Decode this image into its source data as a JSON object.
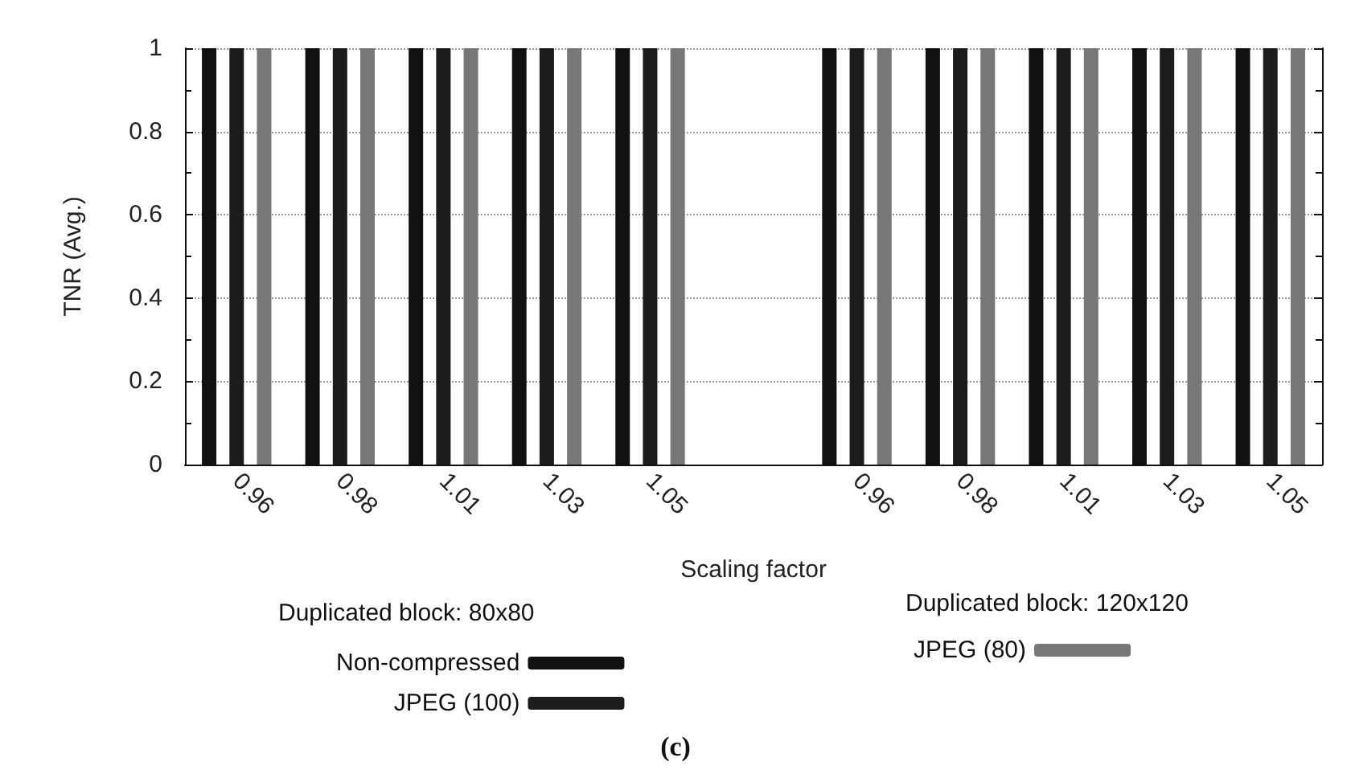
{
  "chart_data": {
    "type": "bar",
    "xlabel": "Scaling factor",
    "ylabel": "TNR (Avg.)",
    "categories": [
      "0.96",
      "0.98",
      "1.01",
      "1.03",
      "1.05",
      null,
      "0.96",
      "0.98",
      "1.01",
      "1.03",
      "1.05"
    ],
    "series": [
      {
        "name": "Non-compressed",
        "color": "#111111",
        "values": [
          1,
          1,
          1,
          1,
          1,
          null,
          1,
          1,
          1,
          1,
          1
        ]
      },
      {
        "name": "JPEG (100)",
        "color": "#1c1c1c",
        "values": [
          1,
          1,
          1,
          1,
          1,
          null,
          1,
          1,
          1,
          1,
          1
        ]
      },
      {
        "name": "JPEG (80)",
        "color": "#777777",
        "values": [
          1,
          1,
          1,
          1,
          1,
          null,
          1,
          1,
          1,
          1,
          1
        ]
      }
    ],
    "ylim": [
      0,
      1
    ],
    "yticks": [
      0,
      0.2,
      0.4,
      0.6,
      0.8,
      1
    ],
    "grid": "y",
    "legend": "bottom",
    "annotations": [
      "Duplicated block: 80x80",
      "Duplicated block: 120x120",
      "(c)"
    ]
  }
}
